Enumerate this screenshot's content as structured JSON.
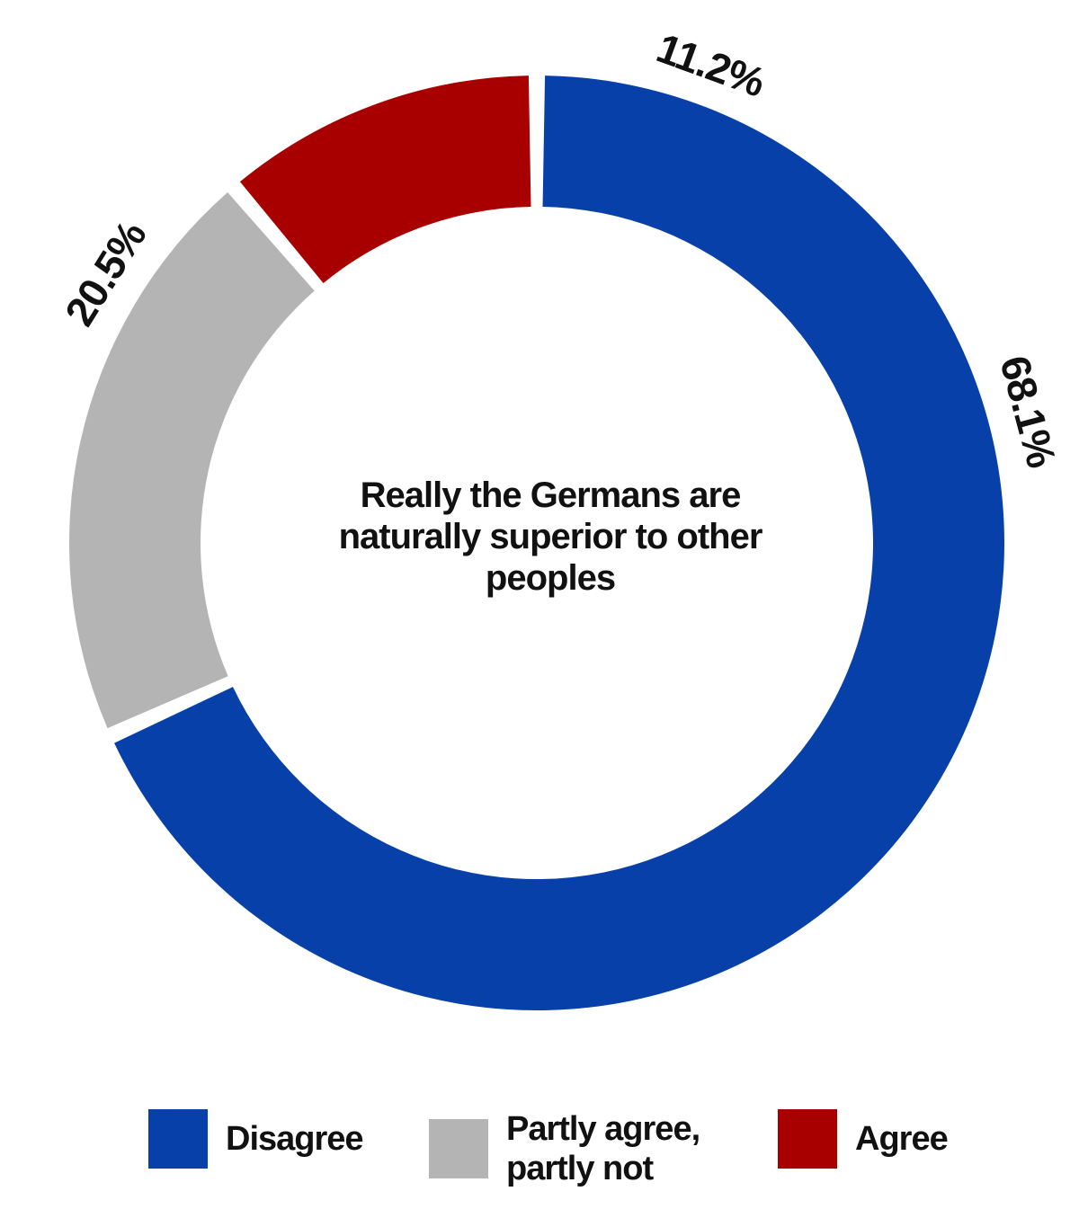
{
  "chart_data": {
    "type": "pie",
    "style": "donut",
    "title": "Really the Germans are naturally superior to other peoples",
    "slices": [
      {
        "label": "Disagree",
        "value": 68.1,
        "value_label": "68.1%",
        "color": "#0740a8"
      },
      {
        "label": "Partly agree, partly not",
        "value": 20.5,
        "value_label": "20.5%",
        "color": "#b4b4b4"
      },
      {
        "label": "Agree",
        "value": 11.2,
        "value_label": "11.2%",
        "color": "#a80000"
      }
    ],
    "legend_position": "bottom"
  }
}
